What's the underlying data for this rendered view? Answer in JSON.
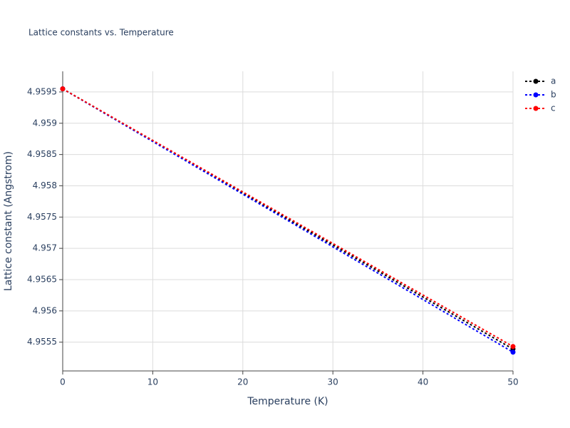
{
  "chart_data": {
    "type": "line",
    "title": "Lattice constants vs. Temperature",
    "x_label": "Temperature (K)",
    "y_label": "Lattice constant (Angstrom)",
    "x": [
      0,
      50
    ],
    "series": [
      {
        "name": "a",
        "color": "#000000",
        "values": [
          4.95955,
          4.95539
        ]
      },
      {
        "name": "b",
        "color": "#0000ff",
        "values": [
          4.95955,
          4.95534
        ]
      },
      {
        "name": "c",
        "color": "#ff0000",
        "values": [
          4.95955,
          4.95543
        ]
      }
    ],
    "xlim": [
      0,
      50
    ],
    "xticks": [
      0,
      10,
      20,
      30,
      40,
      50
    ],
    "ylim": [
      4.95504,
      4.95983
    ],
    "yticks": [
      4.9555,
      4.956,
      4.9565,
      4.957,
      4.9575,
      4.958,
      4.9585,
      4.959,
      4.9595
    ],
    "grid": true,
    "legend": "right"
  }
}
